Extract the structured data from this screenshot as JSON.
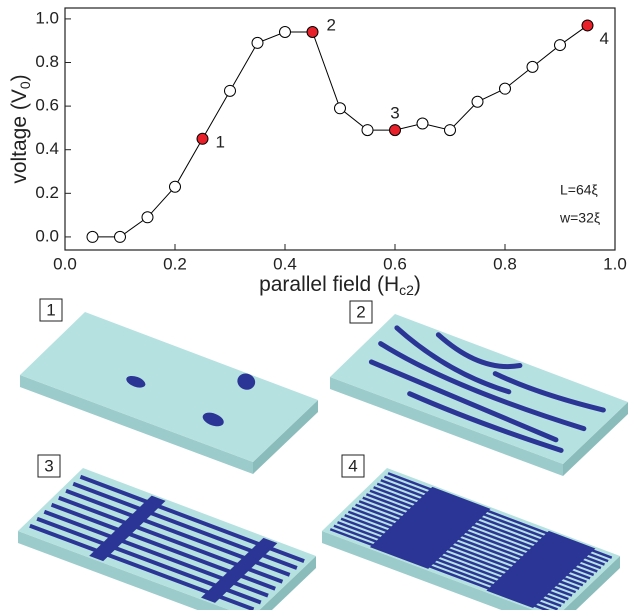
{
  "chart_data": {
    "type": "line",
    "x_label": {
      "text": "parallel field (H",
      "sub": "c2",
      "end": ")"
    },
    "y_label": {
      "text": "voltage (V",
      "sub": "0",
      "end": ")"
    },
    "x": [
      0.05,
      0.1,
      0.15,
      0.2,
      0.25,
      0.3,
      0.35,
      0.4,
      0.45,
      0.5,
      0.55,
      0.6,
      0.65,
      0.7,
      0.75,
      0.8,
      0.85,
      0.9,
      0.95
    ],
    "series": [
      {
        "color": "#000000",
        "values": [
          0.0,
          0.0,
          0.09,
          0.23,
          0.45,
          0.67,
          0.89,
          0.94,
          0.94,
          0.59,
          0.49,
          0.49,
          0.52,
          0.49,
          0.62,
          0.68,
          0.78,
          0.88,
          0.97
        ]
      }
    ],
    "highlights": [
      {
        "index": 4,
        "label": "1"
      },
      {
        "index": 8,
        "label": "2"
      },
      {
        "index": 11,
        "label": "3"
      },
      {
        "index": 18,
        "label": "4"
      }
    ],
    "highlight_color": "#e8202a",
    "xlim": [
      0,
      1
    ],
    "ylim": [
      -0.06,
      1.05
    ],
    "xticks": [
      {
        "value": 0,
        "label": "0.0"
      },
      {
        "value": 0.2,
        "label": "0.2"
      },
      {
        "value": 0.4,
        "label": "0.4"
      },
      {
        "value": 0.6,
        "label": "0.6"
      },
      {
        "value": 0.8,
        "label": "0.8"
      },
      {
        "value": 1,
        "label": "1.0"
      }
    ],
    "yticks": [
      {
        "value": 0,
        "label": "0.0"
      },
      {
        "value": 0.2,
        "label": "0.2"
      },
      {
        "value": 0.4,
        "label": "0.4"
      },
      {
        "value": 0.6,
        "label": "0.6"
      },
      {
        "value": 0.8,
        "label": "0.8"
      },
      {
        "value": 1,
        "label": "1.0"
      }
    ],
    "annotations": [
      "L=64ξ",
      "w=32ξ"
    ],
    "panels": [
      "1",
      "2",
      "3",
      "4"
    ]
  }
}
